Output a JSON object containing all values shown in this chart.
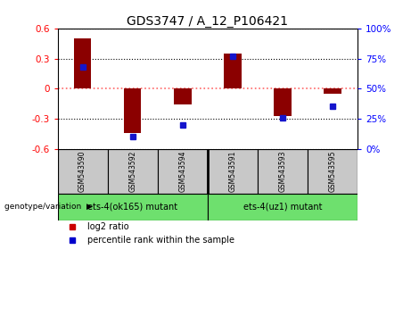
{
  "title": "GDS3747 / A_12_P106421",
  "samples": [
    "GSM543590",
    "GSM543592",
    "GSM543594",
    "GSM543591",
    "GSM543593",
    "GSM543595"
  ],
  "log2_ratio": [
    0.5,
    -0.44,
    -0.155,
    0.345,
    -0.275,
    -0.055
  ],
  "percentile_rank": [
    68,
    10,
    20,
    77,
    26,
    35
  ],
  "group_info": [
    {
      "label": "ets-4(ok165) mutant",
      "start": 0,
      "end": 2,
      "color": "#6EE06E"
    },
    {
      "label": "ets-4(uz1) mutant",
      "start": 3,
      "end": 5,
      "color": "#6EE06E"
    }
  ],
  "bar_color": "#8B0000",
  "dot_color": "#1515CC",
  "ylim": [
    -0.6,
    0.6
  ],
  "yticks_left": [
    -0.6,
    -0.3,
    0.0,
    0.3,
    0.6
  ],
  "yticks_right_pct": [
    0,
    25,
    50,
    75,
    100
  ],
  "background_color": "#FFFFFF",
  "grid_color": "#000000",
  "zero_line_color": "#FF6666",
  "sample_box_color": "#C8C8C8",
  "legend_items": [
    {
      "label": "log2 ratio",
      "color": "#CC0000"
    },
    {
      "label": "percentile rank within the sample",
      "color": "#0000CC"
    }
  ],
  "bar_width": 0.35
}
